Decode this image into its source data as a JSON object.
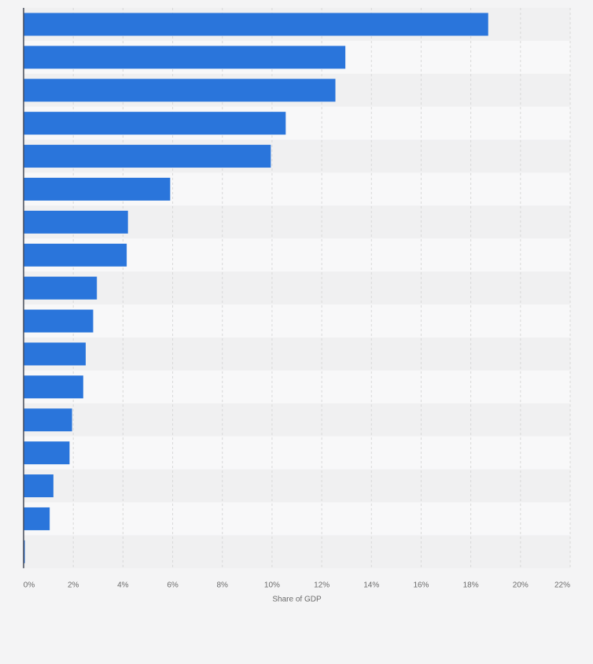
{
  "chart_data": {
    "type": "bar",
    "orientation": "horizontal",
    "categories": [
      "",
      "",
      "",
      "",
      "",
      "",
      "",
      "",
      "",
      "",
      "",
      "",
      "",
      "",
      "",
      "",
      ""
    ],
    "values": [
      18.7,
      12.95,
      12.55,
      10.55,
      9.95,
      5.9,
      4.2,
      4.15,
      2.95,
      2.8,
      2.5,
      2.4,
      1.95,
      1.85,
      1.2,
      1.05,
      0.05
    ],
    "xlabel": "Share of GDP",
    "ylabel": "",
    "xlim": [
      0,
      22
    ],
    "ticks": [
      0,
      2,
      4,
      6,
      8,
      10,
      12,
      14,
      16,
      18,
      20,
      22
    ],
    "tick_labels": [
      "0%",
      "2%",
      "4%",
      "6%",
      "8%",
      "10%",
      "12%",
      "14%",
      "16%",
      "18%",
      "20%",
      "22%"
    ],
    "grid": "vertical dashed",
    "colors": {
      "bar": "#2a75db",
      "row_band_a": "#f0f0f1",
      "row_band_b": "#f8f8f9",
      "grid": "#d8d8d8",
      "axis": "#444a57",
      "text": "#6b6b6b"
    }
  }
}
